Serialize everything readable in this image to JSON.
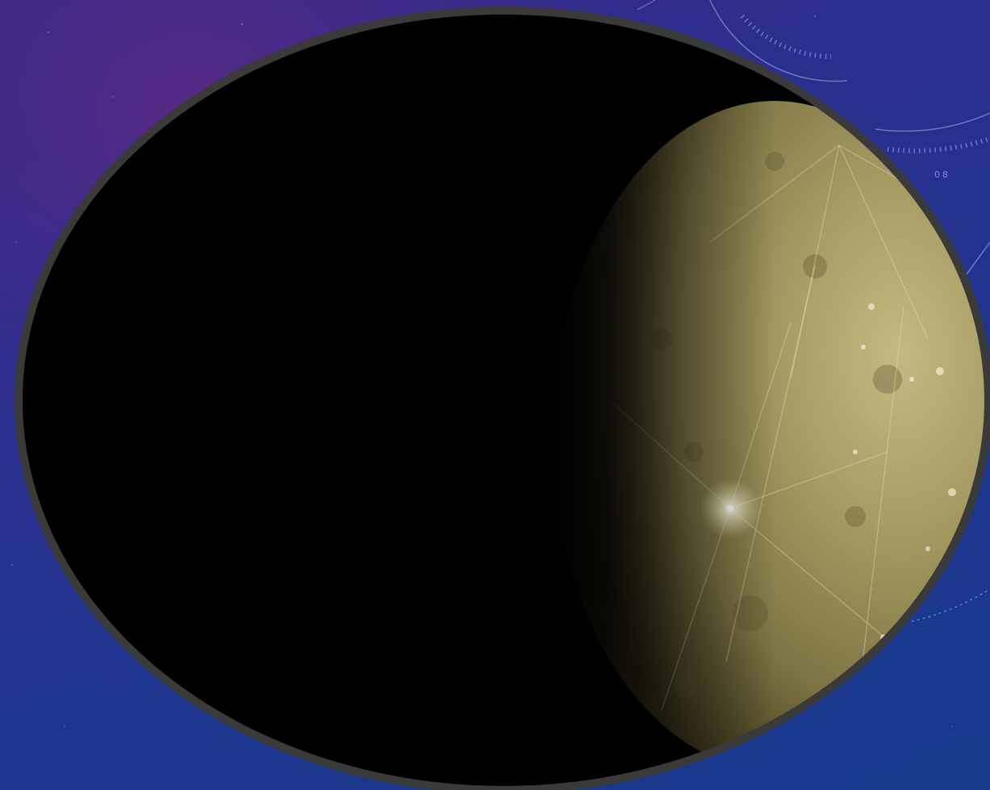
{
  "scene": {
    "subject": "mercury-planet-photo",
    "frame_shape": "ellipse",
    "colors": {
      "background_top": "#4a1f7a",
      "background_bottom": "#163a8a",
      "frame_border": "#3a3a3a",
      "photo_space": "#000000",
      "planet_light": "#b5aa72",
      "planet_mid": "#8f8550",
      "planet_dark": "#4a4322",
      "hud_lines": "#c8d2f0"
    }
  },
  "hud": {
    "tick_label": "08"
  }
}
